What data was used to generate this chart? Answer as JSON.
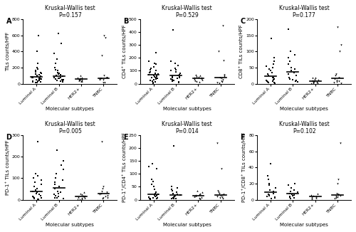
{
  "panels": [
    {
      "label": "A",
      "title": "Kruskal-Wallis test\nP=0.157",
      "ylabel": "TILs counts/HPF",
      "ylim": [
        0,
        800
      ],
      "yticks": [
        0,
        200,
        400,
        600,
        800
      ],
      "groups": {
        "Luminal A": {
          "marker": "s",
          "data": [
            400,
            600,
            250,
            200,
            150,
            180,
            160,
            140,
            130,
            120,
            110,
            100,
            95,
            90,
            85,
            80,
            75,
            70,
            65,
            60,
            55,
            50,
            45,
            40,
            35,
            30,
            25,
            20,
            15,
            10
          ]
        },
        "Luminal B": {
          "marker": "s",
          "data": [
            620,
            500,
            380,
            310,
            250,
            200,
            175,
            160,
            140,
            130,
            120,
            110,
            100,
            90,
            80,
            75,
            70,
            65,
            60,
            55,
            50,
            45,
            40,
            35,
            30,
            25
          ]
        },
        "HER2+": {
          "marker": "^",
          "data": [
            100,
            80,
            75,
            70,
            65,
            60,
            55,
            50,
            45,
            40,
            35,
            30
          ]
        },
        "TNBC": {
          "marker": "v",
          "data": [
            600,
            570,
            350,
            100,
            80,
            75,
            70,
            65,
            55,
            50,
            45,
            15,
            10
          ]
        }
      }
    },
    {
      "label": "B",
      "title": "Kruskal-Wallis test\nP=0.529",
      "ylabel": "CD4⁺ TILs counts/HPF",
      "ylim": [
        0,
        500
      ],
      "yticks": [
        0,
        100,
        200,
        300,
        400,
        500
      ],
      "groups": {
        "Luminal A": {
          "marker": "s",
          "data": [
            240,
            175,
            160,
            150,
            130,
            120,
            110,
            100,
            90,
            85,
            80,
            75,
            70,
            65,
            60,
            55,
            50,
            45,
            40,
            35,
            30,
            25,
            20,
            15,
            10,
            5
          ]
        },
        "Luminal B": {
          "marker": "s",
          "data": [
            420,
            175,
            160,
            140,
            120,
            110,
            100,
            90,
            80,
            70,
            65,
            60,
            55,
            50,
            45,
            40,
            35,
            30,
            25,
            20,
            15,
            10
          ]
        },
        "HER2+": {
          "marker": "^",
          "data": [
            70,
            65,
            60,
            55,
            50,
            45,
            40,
            35,
            30,
            25,
            20,
            15
          ]
        },
        "TNBC": {
          "marker": "v",
          "data": [
            450,
            250,
            180,
            70,
            60,
            50,
            40,
            30,
            20,
            15,
            10,
            5
          ]
        }
      }
    },
    {
      "label": "C",
      "title": "Kruskal-Wallis test\nP=0.177",
      "ylabel": "CD8⁺ TILs counts/HPF",
      "ylim": [
        0,
        200
      ],
      "yticks": [
        0,
        50,
        100,
        150,
        200
      ],
      "groups": {
        "Luminal A": {
          "marker": "s",
          "data": [
            140,
            80,
            70,
            60,
            55,
            50,
            45,
            40,
            35,
            30,
            25,
            20,
            18,
            15,
            12,
            10,
            8,
            7,
            5,
            4,
            3,
            2
          ]
        },
        "Luminal B": {
          "marker": "s",
          "data": [
            170,
            100,
            90,
            80,
            70,
            60,
            50,
            45,
            40,
            35,
            30,
            25,
            20,
            15,
            12,
            10,
            8,
            5
          ]
        },
        "HER2+": {
          "marker": "^",
          "data": [
            20,
            18,
            15,
            12,
            10,
            8,
            6,
            5,
            4,
            3,
            2
          ]
        },
        "TNBC": {
          "marker": "v",
          "data": [
            175,
            120,
            100,
            30,
            25,
            20,
            15,
            10,
            8,
            5,
            3,
            2
          ]
        }
      }
    },
    {
      "label": "D",
      "title": "Kruskal-Wallis test\nP=0.005",
      "ylabel": "PD-1⁺ TILs counts/HPF",
      "ylim": [
        0,
        300
      ],
      "yticks": [
        0,
        100,
        200,
        300
      ],
      "groups": {
        "Luminal A": {
          "marker": "s",
          "data": [
            270,
            120,
            110,
            100,
            90,
            80,
            70,
            60,
            50,
            45,
            40,
            35,
            30,
            25,
            20,
            15,
            12,
            10,
            8,
            5,
            3,
            2
          ]
        },
        "Luminal B": {
          "marker": "s",
          "data": [
            230,
            180,
            160,
            140,
            120,
            100,
            90,
            80,
            70,
            60,
            50,
            40,
            35,
            30,
            25,
            20,
            15,
            10,
            8,
            5
          ]
        },
        "HER2+": {
          "marker": "^",
          "data": [
            35,
            30,
            25,
            20,
            18,
            15,
            12,
            10,
            8,
            5,
            3,
            2
          ]
        },
        "TNBC": {
          "marker": "v",
          "data": [
            270,
            60,
            50,
            40,
            35,
            30,
            25,
            20,
            15,
            10,
            8,
            5
          ]
        }
      }
    },
    {
      "label": "E",
      "title": "Kruskal-Wallis test\nP=0.014",
      "ylabel": "PD-1⁺/CD4⁺ TILs counts/HPF",
      "ylim": [
        0,
        250
      ],
      "yticks": [
        0,
        50,
        100,
        150,
        200,
        250
      ],
      "groups": {
        "Luminal A": {
          "marker": "s",
          "data": [
            140,
            130,
            120,
            80,
            70,
            60,
            50,
            40,
            30,
            25,
            20,
            18,
            15,
            12,
            10,
            8,
            7,
            5,
            4,
            3,
            2
          ]
        },
        "Luminal B": {
          "marker": "s",
          "data": [
            210,
            50,
            45,
            40,
            35,
            30,
            25,
            20,
            18,
            15,
            12,
            10,
            8,
            5,
            4,
            3
          ]
        },
        "HER2+": {
          "marker": "^",
          "data": [
            35,
            30,
            25,
            20,
            18,
            15,
            12,
            10,
            8,
            5
          ]
        },
        "TNBC": {
          "marker": "v",
          "data": [
            220,
            120,
            35,
            30,
            25,
            20,
            18,
            15,
            12,
            10,
            8,
            5
          ]
        }
      }
    },
    {
      "label": "F",
      "title": "Kruskal-Wallis test\nP=0.102",
      "ylabel": "PD-1⁺/CD8⁺ TILs counts/HPF",
      "ylim": [
        0,
        80
      ],
      "yticks": [
        0,
        20,
        40,
        60,
        80
      ],
      "groups": {
        "Luminal A": {
          "marker": "s",
          "data": [
            45,
            30,
            25,
            20,
            18,
            15,
            12,
            10,
            8,
            7,
            6,
            5,
            4,
            3,
            2,
            1
          ]
        },
        "Luminal B": {
          "marker": "s",
          "data": [
            20,
            18,
            15,
            12,
            10,
            9,
            8,
            7,
            6,
            5,
            4,
            3,
            2,
            1
          ]
        },
        "HER2+": {
          "marker": "^",
          "data": [
            8,
            6,
            5,
            4,
            3,
            2,
            1
          ]
        },
        "TNBC": {
          "marker": "v",
          "data": [
            70,
            25,
            20,
            8,
            7,
            6,
            5,
            4,
            3,
            2,
            1
          ]
        }
      }
    }
  ],
  "group_names": [
    "Luminal A",
    "Luminal B",
    "HER2+",
    "TNBC"
  ],
  "xlabel": "Molecular subtypes",
  "dot_color": "black",
  "mean_line_color": "black",
  "fontsize_title": 5.5,
  "fontsize_label": 5.0,
  "fontsize_tick": 4.5,
  "fontsize_panel_label": 7
}
